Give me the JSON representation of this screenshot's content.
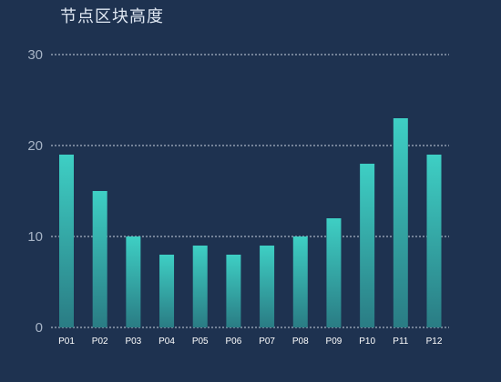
{
  "chart_data": {
    "type": "bar",
    "title": "节点区块高度",
    "categories": [
      "P01",
      "P02",
      "P03",
      "P04",
      "P05",
      "P06",
      "P07",
      "P08",
      "P09",
      "P10",
      "P11",
      "P12"
    ],
    "values": [
      19,
      15,
      10,
      8,
      9,
      8,
      9,
      10,
      12,
      18,
      23,
      19
    ],
    "ylim": [
      0,
      30
    ],
    "yticks": [
      "0",
      "10",
      "20",
      "30"
    ],
    "grid": true,
    "colors": {
      "background": "#1e3250",
      "bar_top": "#3ecfc4",
      "bar_bottom": "#2a7c84",
      "grid": "#c9d3e0",
      "ytick": "#a7b4c6",
      "xtick": "#ffffff",
      "title": "#dfe7f2"
    }
  }
}
